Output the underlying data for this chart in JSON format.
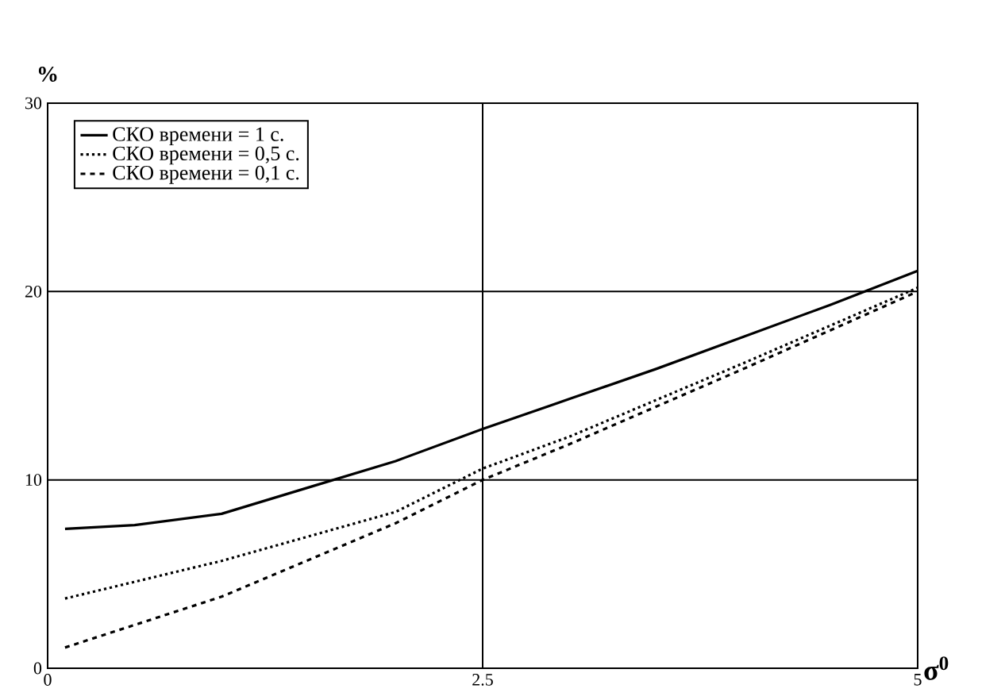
{
  "chart_data": {
    "type": "line",
    "xlabel": "σ$^{0}$",
    "ylabel": "%",
    "xlim": [
      0,
      5
    ],
    "ylim": [
      0,
      30
    ],
    "xticks": [
      0,
      2.5,
      5
    ],
    "yticks": [
      0,
      10,
      20,
      30
    ],
    "grid": true,
    "legend": "top left",
    "series": [
      {
        "name": "СКО времени = 1 с.",
        "color": "#000000",
        "line_style": "solid",
        "x": [
          0.1,
          0.5,
          1,
          1.5,
          2,
          2.5,
          3,
          3.5,
          4,
          4.5,
          5
        ],
        "values": [
          7.4,
          7.6,
          8.2,
          9.6,
          11,
          12.7,
          14.3,
          15.9,
          17.6,
          19.3,
          21.1
        ]
      },
      {
        "name": "СКО времени = 0,5 с.",
        "color": "#000000",
        "line_style": "dotted",
        "x": [
          0.1,
          1,
          2,
          2.5,
          3,
          4,
          5
        ],
        "values": [
          3.7,
          5.7,
          8.3,
          10.6,
          12.3,
          16.2,
          20.2
        ]
      },
      {
        "name": "СКО времени = 0,1 с.",
        "color": "#000000",
        "line_style": "dashed",
        "x": [
          0.1,
          1,
          2,
          2.5,
          3,
          4,
          5
        ],
        "values": [
          1.1,
          3.8,
          7.7,
          10.0,
          11.9,
          15.9,
          20.0
        ]
      }
    ]
  }
}
